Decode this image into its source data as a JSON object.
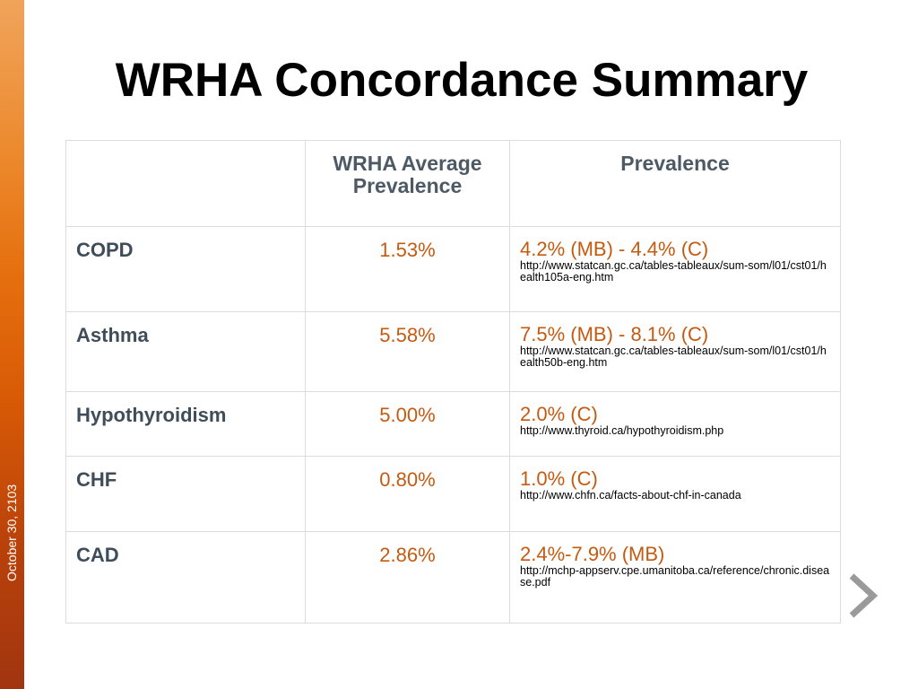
{
  "slide": {
    "title": "WRHA Concordance Summary",
    "date": "October 30, 2103",
    "accent_color": "#e56f0e",
    "value_color": "#c55a11",
    "header_color": "#4d5a66"
  },
  "table": {
    "headers": [
      "",
      "WRHA Average Prevalence",
      "Prevalence"
    ],
    "rows": [
      {
        "condition": "COPD",
        "wrha_avg": "1.53%",
        "prevalence": "4.2% (MB) - 4.4% (C)",
        "source": "http://www.statcan.gc.ca/tables-tableaux/sum-som/l01/cst01/health105a-eng.htm"
      },
      {
        "condition": "Asthma",
        "wrha_avg": "5.58%",
        "prevalence": "7.5% (MB) - 8.1% (C)",
        "source": "http://www.statcan.gc.ca/tables-tableaux/sum-som/l01/cst01/health50b-eng.htm"
      },
      {
        "condition": "Hypothyroidism",
        "wrha_avg": "5.00%",
        "prevalence": "2.0% (C)",
        "source": "http://www.thyroid.ca/hypothyroidism.php"
      },
      {
        "condition": "CHF",
        "wrha_avg": "0.80%",
        "prevalence": "1.0% (C)",
        "source": "http://www.chfn.ca/facts-about-chf-in-canada"
      },
      {
        "condition": "CAD",
        "wrha_avg": "2.86%",
        "prevalence": "2.4%-7.9% (MB)",
        "source": "http://mchp-appserv.cpe.umanitoba.ca/reference/chronic.disease.pdf"
      }
    ]
  },
  "navigation": {
    "next_icon": "chevron-right-icon"
  }
}
